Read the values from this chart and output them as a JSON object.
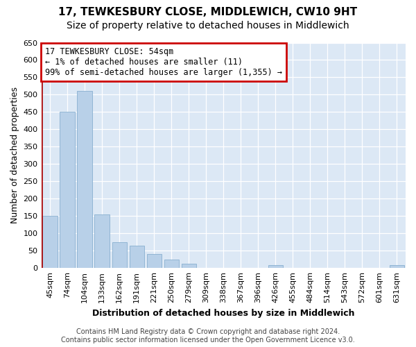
{
  "title": "17, TEWKESBURY CLOSE, MIDDLEWICH, CW10 9HT",
  "subtitle": "Size of property relative to detached houses in Middlewich",
  "xlabel": "Distribution of detached houses by size in Middlewich",
  "ylabel": "Number of detached properties",
  "categories": [
    "45sqm",
    "74sqm",
    "104sqm",
    "133sqm",
    "162sqm",
    "191sqm",
    "221sqm",
    "250sqm",
    "279sqm",
    "309sqm",
    "338sqm",
    "367sqm",
    "396sqm",
    "426sqm",
    "455sqm",
    "484sqm",
    "514sqm",
    "543sqm",
    "572sqm",
    "601sqm",
    "631sqm"
  ],
  "values": [
    150,
    450,
    510,
    155,
    75,
    65,
    40,
    25,
    13,
    0,
    0,
    0,
    0,
    9,
    0,
    0,
    0,
    0,
    0,
    0,
    8
  ],
  "bar_color": "#b8d0e8",
  "bar_edge_color": "#88afd0",
  "annotation_line1": "17 TEWKESBURY CLOSE: 54sqm",
  "annotation_line2": "← 1% of detached houses are smaller (11)",
  "annotation_line3": "99% of semi-detached houses are larger (1,355) →",
  "annotation_box_color": "#cc0000",
  "annotation_box_bg": "#ffffff",
  "vline_color": "#aa0000",
  "ylim": [
    0,
    650
  ],
  "yticks": [
    0,
    50,
    100,
    150,
    200,
    250,
    300,
    350,
    400,
    450,
    500,
    550,
    600,
    650
  ],
  "bg_color": "#dce8f5",
  "footer1": "Contains HM Land Registry data © Crown copyright and database right 2024.",
  "footer2": "Contains public sector information licensed under the Open Government Licence v3.0.",
  "title_fontsize": 11,
  "subtitle_fontsize": 10,
  "ylabel_fontsize": 9,
  "xlabel_fontsize": 9,
  "tick_fontsize": 8,
  "annot_fontsize": 8.5,
  "footer_fontsize": 7
}
